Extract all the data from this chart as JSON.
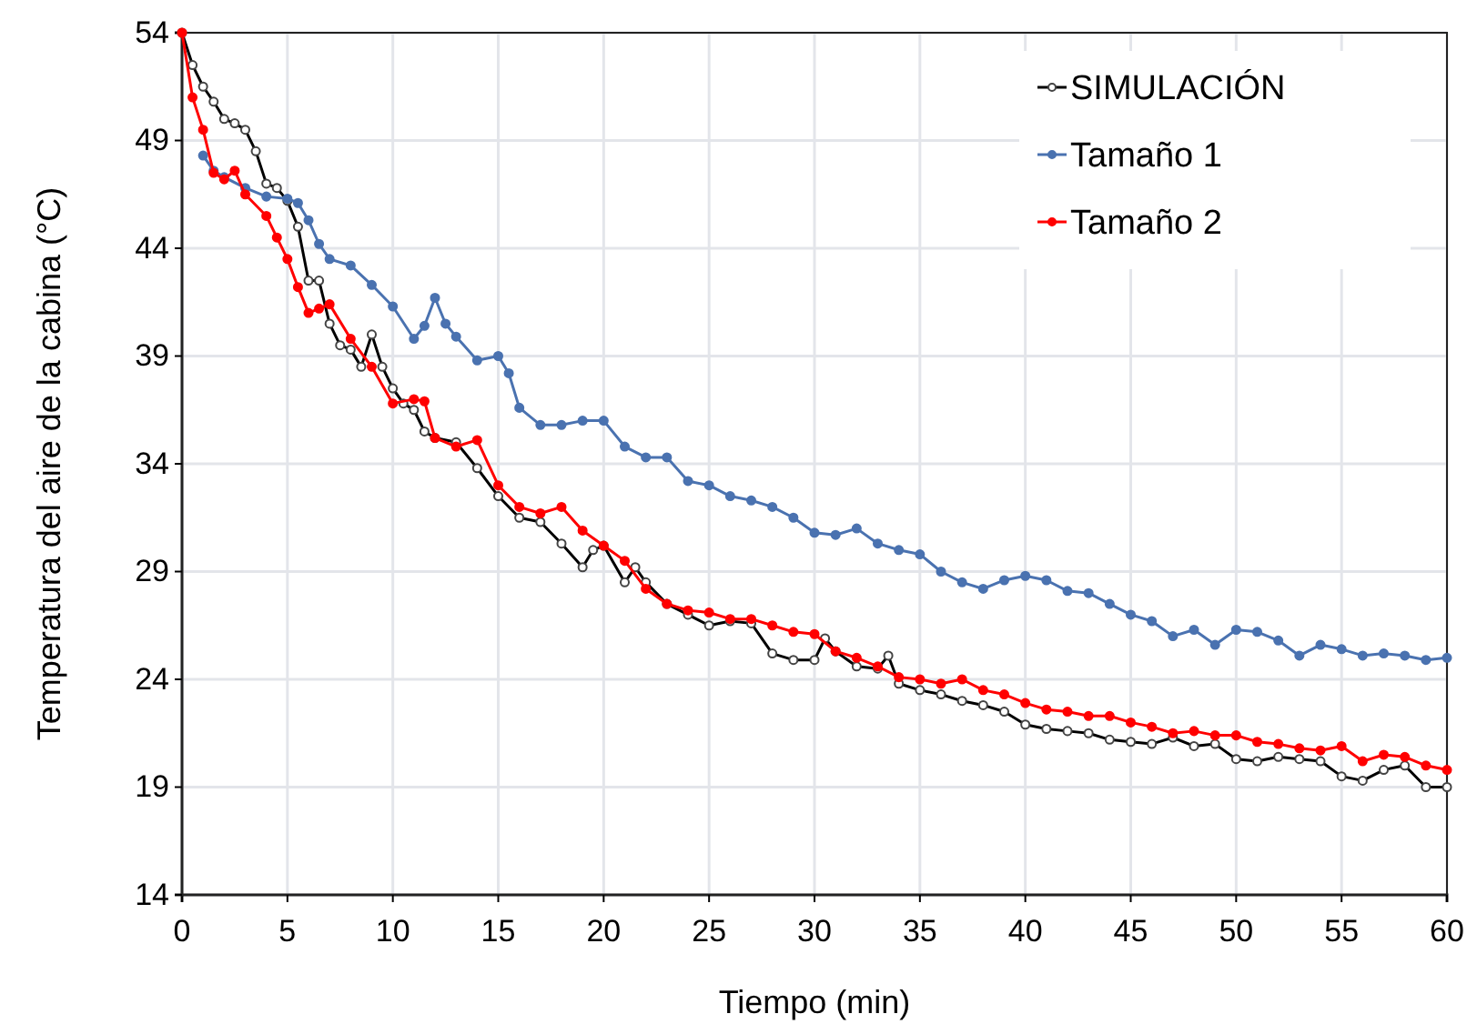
{
  "chart_data": {
    "type": "line",
    "xlabel": "Tiempo (min)",
    "ylabel": "Temperatura del aire de la cabina (°C)",
    "xlim": [
      0,
      60
    ],
    "ylim": [
      14,
      54
    ],
    "xticks": [
      0,
      5,
      10,
      15,
      20,
      25,
      30,
      35,
      40,
      45,
      50,
      55,
      60
    ],
    "yticks": [
      14,
      19,
      24,
      29,
      34,
      39,
      44,
      49,
      54
    ],
    "grid": true,
    "legend": "top right",
    "marker": "circle",
    "line_style": "solid",
    "series": [
      {
        "name": "SIMULACIÓN",
        "color": "#000000",
        "x": [
          0,
          0.5,
          1,
          1.5,
          2,
          2.5,
          3,
          3.5,
          4,
          4.5,
          5,
          5.5,
          6,
          6.5,
          7,
          7.5,
          8,
          8.5,
          9,
          9.5,
          10,
          10.5,
          11,
          11.5,
          12,
          13,
          14,
          15,
          16,
          17,
          18,
          19,
          19.5,
          20,
          21,
          21.5,
          22,
          23,
          24,
          25,
          26,
          27,
          28,
          29,
          30,
          30.5,
          31,
          32,
          33,
          33.5,
          34,
          35,
          36,
          37,
          38,
          39,
          40,
          41,
          42,
          43,
          44,
          45,
          46,
          47,
          48,
          49,
          50,
          51,
          52,
          53,
          54,
          55,
          56,
          57,
          58,
          59,
          60
        ],
        "values": [
          54,
          52.5,
          51.5,
          50.8,
          50,
          49.8,
          49.5,
          48.5,
          47,
          46.8,
          46.2,
          45,
          42.5,
          42.5,
          40.5,
          39.5,
          39.3,
          38.5,
          40,
          38.5,
          37.5,
          36.8,
          36.5,
          35.5,
          35.2,
          35,
          33.8,
          32.5,
          31.5,
          31.3,
          30.3,
          29.2,
          30,
          30.2,
          28.5,
          29.2,
          28.5,
          27.5,
          27,
          26.5,
          26.7,
          26.6,
          25.2,
          24.9,
          24.9,
          25.9,
          25.3,
          24.6,
          24.5,
          25.1,
          23.8,
          23.5,
          23.3,
          23,
          22.8,
          22.5,
          21.9,
          21.7,
          21.6,
          21.5,
          21.2,
          21.1,
          21,
          21.3,
          20.9,
          21,
          20.3,
          20.2,
          20.4,
          20.3,
          20.2,
          19.5,
          19.3,
          19.8,
          20,
          19,
          19
        ]
      },
      {
        "name": "Tamaño 1",
        "color": "#4a72b0",
        "x": [
          1,
          1.5,
          2,
          3,
          4,
          5,
          5.5,
          6,
          6.5,
          7,
          8,
          9,
          10,
          11,
          11.5,
          12,
          12.5,
          13,
          14,
          15,
          15.5,
          16,
          17,
          18,
          19,
          20,
          21,
          22,
          23,
          24,
          25,
          26,
          27,
          28,
          29,
          30,
          31,
          32,
          33,
          34,
          35,
          36,
          37,
          38,
          39,
          40,
          41,
          42,
          43,
          44,
          45,
          46,
          47,
          48,
          49,
          50,
          51,
          52,
          53,
          54,
          55,
          56,
          57,
          58,
          59,
          60
        ],
        "values": [
          48.3,
          47.6,
          47.3,
          46.8,
          46.4,
          46.3,
          46.1,
          45.3,
          44.2,
          43.5,
          43.2,
          42.3,
          41.3,
          39.8,
          40.4,
          41.7,
          40.5,
          39.9,
          38.8,
          39,
          38.2,
          36.6,
          35.8,
          35.8,
          36,
          36,
          34.8,
          34.3,
          34.3,
          33.2,
          33,
          32.5,
          32.3,
          32,
          31.5,
          30.8,
          30.7,
          31,
          30.3,
          30,
          29.8,
          29,
          28.5,
          28.2,
          28.6,
          28.8,
          28.6,
          28.1,
          28,
          27.5,
          27,
          26.7,
          26,
          26.3,
          25.6,
          26.3,
          26.2,
          25.8,
          25.1,
          25.6,
          25.4,
          25.1,
          25.2,
          25.1,
          24.9,
          25
        ]
      },
      {
        "name": "Tamaño 2",
        "color": "#ff0000",
        "x": [
          0,
          0.5,
          1,
          1.5,
          2,
          2.5,
          3,
          4,
          4.5,
          5,
          5.5,
          6,
          6.5,
          7,
          8,
          9,
          10,
          11,
          11.5,
          12,
          13,
          14,
          15,
          16,
          17,
          18,
          19,
          20,
          21,
          22,
          23,
          24,
          25,
          26,
          27,
          28,
          29,
          30,
          31,
          32,
          33,
          34,
          35,
          36,
          37,
          38,
          39,
          40,
          41,
          42,
          43,
          44,
          45,
          46,
          47,
          48,
          49,
          50,
          51,
          52,
          53,
          54,
          55,
          56,
          57,
          58,
          59,
          60
        ],
        "values": [
          54,
          51,
          49.5,
          47.5,
          47.2,
          47.6,
          46.5,
          45.5,
          44.5,
          43.5,
          42.2,
          41,
          41.2,
          41.4,
          39.8,
          38.5,
          36.8,
          37,
          36.9,
          35.2,
          34.8,
          35.1,
          33,
          32,
          31.7,
          32,
          30.9,
          30.2,
          29.5,
          28.2,
          27.5,
          27.2,
          27.1,
          26.8,
          26.8,
          26.5,
          26.2,
          26.1,
          25.3,
          25,
          24.6,
          24.1,
          24,
          23.8,
          24,
          23.5,
          23.3,
          22.9,
          22.6,
          22.5,
          22.3,
          22.3,
          22,
          21.8,
          21.5,
          21.6,
          21.4,
          21.4,
          21.1,
          21,
          20.8,
          20.7,
          20.9,
          20.2,
          20.5,
          20.4,
          20,
          19.8
        ]
      }
    ]
  }
}
